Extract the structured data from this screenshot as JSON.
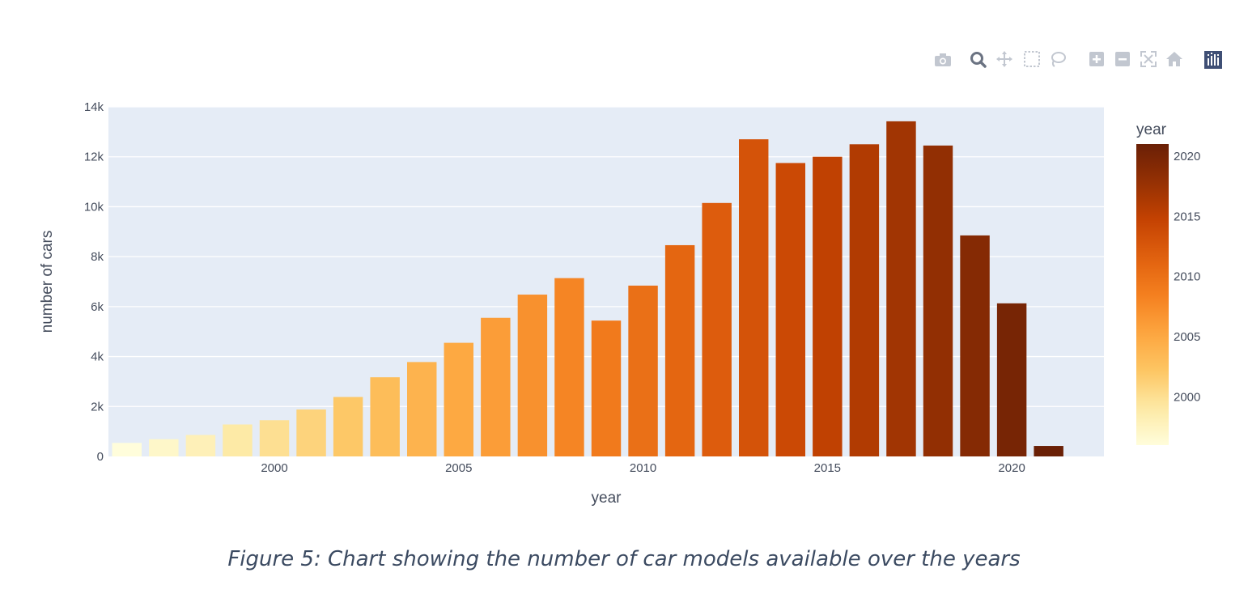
{
  "toolbar": {
    "buttons": [
      {
        "name": "camera-icon",
        "label": "Download plot as a png"
      },
      {
        "name": "zoom-icon",
        "label": "Zoom"
      },
      {
        "name": "pan-icon",
        "label": "Pan"
      },
      {
        "name": "box-select-icon",
        "label": "Box Select"
      },
      {
        "name": "lasso-select-icon",
        "label": "Lasso Select"
      },
      {
        "name": "zoom-in-icon",
        "label": "Zoom in"
      },
      {
        "name": "zoom-out-icon",
        "label": "Zoom out"
      },
      {
        "name": "autoscale-icon",
        "label": "Autoscale"
      },
      {
        "name": "reset-axes-icon",
        "label": "Reset axes"
      },
      {
        "name": "plotly-logo-icon",
        "label": "Produced with Plotly"
      }
    ],
    "icon_color": "#c2c7d0",
    "active_color": "#6b7382",
    "logo_color": "#3f4f75"
  },
  "chart_data": {
    "type": "bar",
    "x": [
      1996,
      1997,
      1998,
      1999,
      2000,
      2001,
      2002,
      2003,
      2004,
      2005,
      2006,
      2007,
      2008,
      2009,
      2010,
      2011,
      2012,
      2013,
      2014,
      2015,
      2016,
      2017,
      2018,
      2019,
      2020,
      2021
    ],
    "values": [
      540,
      690,
      860,
      1280,
      1450,
      1880,
      2380,
      3170,
      3780,
      4550,
      5550,
      6480,
      7140,
      5440,
      6840,
      8460,
      10150,
      12700,
      11750,
      12000,
      12500,
      13420,
      12450,
      8850,
      6130,
      420
    ],
    "xlabel": "year",
    "ylabel": "number of cars",
    "ylim": [
      0,
      14000
    ],
    "yticks": [
      0,
      2000,
      4000,
      6000,
      8000,
      10000,
      12000,
      14000
    ],
    "ytick_labels": [
      "0",
      "2k",
      "4k",
      "6k",
      "8k",
      "10k",
      "12k",
      "14k"
    ],
    "xticks": [
      2000,
      2005,
      2010,
      2015,
      2020
    ],
    "xtick_labels": [
      "2000",
      "2005",
      "2010",
      "2015",
      "2020"
    ],
    "grid": true,
    "plot_background": "#e5ecf6",
    "colorscale": [
      "#fffddb",
      "#fde9a4",
      "#fdc562",
      "#fda53e",
      "#f47f1f",
      "#e0600e",
      "#c44202",
      "#943003",
      "#6a2006"
    ],
    "colorbar": {
      "title": "year",
      "range": [
        1996,
        2021
      ],
      "ticks": [
        2000,
        2005,
        2010,
        2015,
        2020
      ],
      "tick_labels": [
        "2000",
        "2005",
        "2010",
        "2015",
        "2020"
      ],
      "placement": "right"
    }
  },
  "caption": "Figure 5: Chart showing the number of car models available over the years"
}
